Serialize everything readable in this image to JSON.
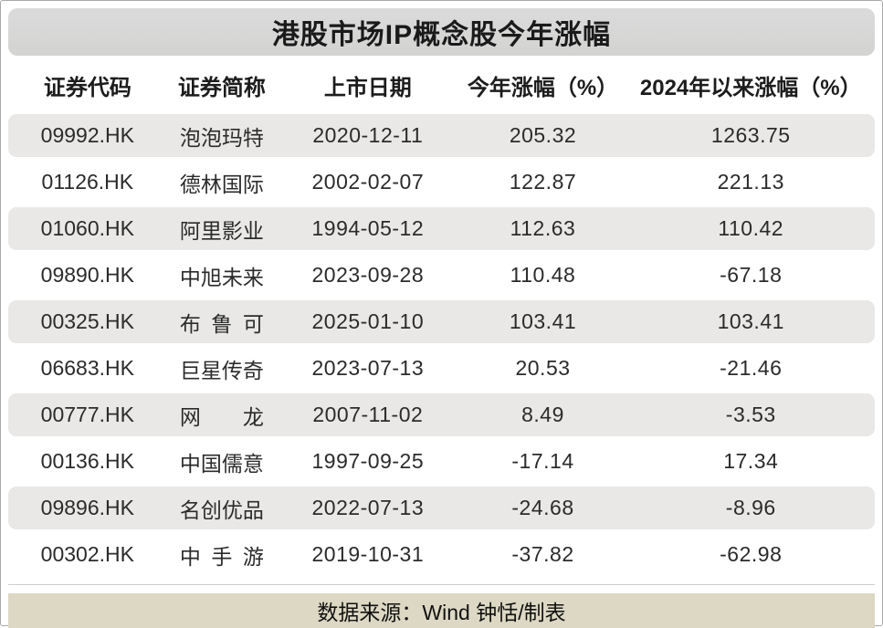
{
  "title": "港股市场IP概念股今年涨幅",
  "footer": {
    "source_text": "数据来源：Wind 钟恬/制表"
  },
  "colors": {
    "title_bar_bg": "#d6d6d5",
    "stripe_bg": "#e9e8e6",
    "footer_bg": "#dcd8c3",
    "text": "#1f1f1f",
    "border": "#a9a9a9"
  },
  "chart_data": {
    "type": "table",
    "title": "港股市场IP概念股今年涨幅",
    "columns": [
      "证券代码",
      "证券简称",
      "上市日期",
      "今年涨幅（%）",
      "2024年以来涨幅（%）"
    ],
    "rows": [
      {
        "code": "09992.HK",
        "name": "泡泡玛特",
        "list_date": "2020-12-11",
        "ytd_pct": "205.32",
        "since_2024_pct": "1263.75"
      },
      {
        "code": "01126.HK",
        "name": "德林国际",
        "list_date": "2002-02-07",
        "ytd_pct": "122.87",
        "since_2024_pct": "221.13"
      },
      {
        "code": "01060.HK",
        "name": "阿里影业",
        "list_date": "1994-05-12",
        "ytd_pct": "112.63",
        "since_2024_pct": "110.42"
      },
      {
        "code": "09890.HK",
        "name": "中旭未来",
        "list_date": "2023-09-28",
        "ytd_pct": "110.48",
        "since_2024_pct": "-67.18"
      },
      {
        "code": "00325.HK",
        "name": "布鲁可",
        "list_date": "2025-01-10",
        "ytd_pct": "103.41",
        "since_2024_pct": "103.41"
      },
      {
        "code": "06683.HK",
        "name": "巨星传奇",
        "list_date": "2023-07-13",
        "ytd_pct": "20.53",
        "since_2024_pct": "-21.46"
      },
      {
        "code": "00777.HK",
        "name": "网龙",
        "list_date": "2007-11-02",
        "ytd_pct": "8.49",
        "since_2024_pct": "-3.53"
      },
      {
        "code": "00136.HK",
        "name": "中国儒意",
        "list_date": "1997-09-25",
        "ytd_pct": "-17.14",
        "since_2024_pct": "17.34"
      },
      {
        "code": "09896.HK",
        "name": "名创优品",
        "list_date": "2022-07-13",
        "ytd_pct": "-24.68",
        "since_2024_pct": "-8.96"
      },
      {
        "code": "00302.HK",
        "name": "中手游",
        "list_date": "2019-10-31",
        "ytd_pct": "-37.82",
        "since_2024_pct": "-62.98"
      }
    ]
  }
}
